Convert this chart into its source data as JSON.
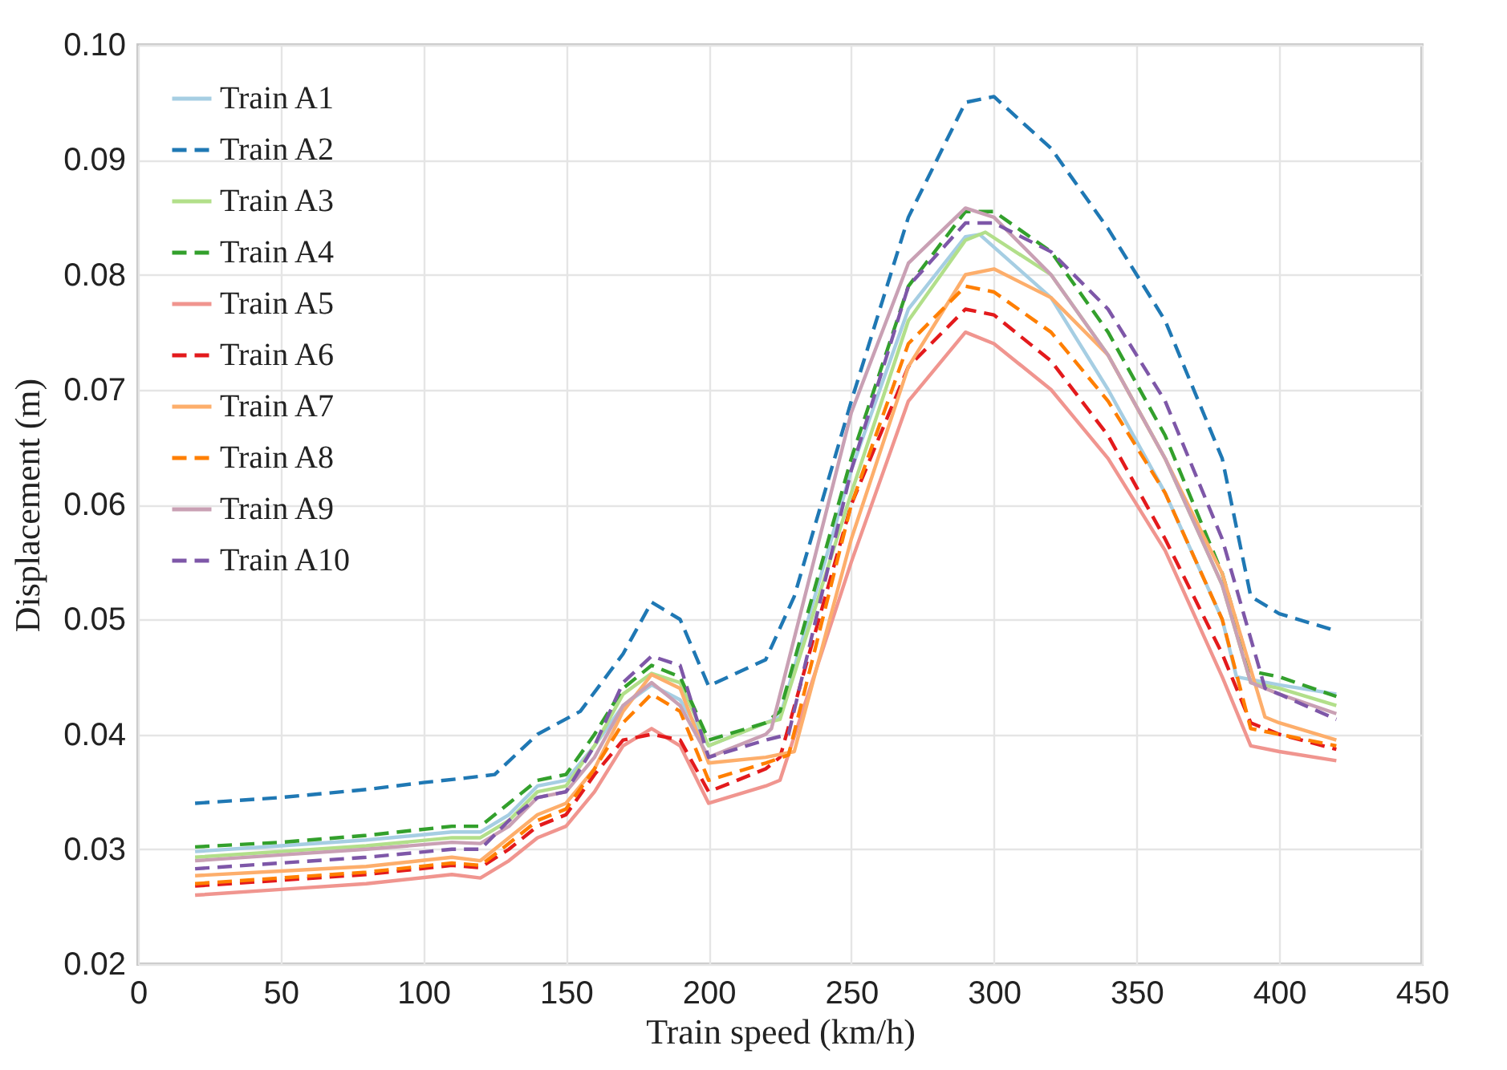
{
  "chart_data": {
    "type": "line",
    "xlabel": "Train speed (km/h)",
    "ylabel": "Displacement (m)",
    "xlim": [
      0,
      450
    ],
    "xticks": [
      0,
      50,
      100,
      150,
      200,
      250,
      300,
      350,
      400,
      450
    ],
    "ylim": [
      0.02,
      0.1
    ],
    "yticks": [
      0.02,
      0.03,
      0.04,
      0.05,
      0.06,
      0.07,
      0.08,
      0.09,
      {
        "value": 0.1,
        "label": "0.10"
      }
    ],
    "grid": true,
    "legend": "top left",
    "marker": "none",
    "series": [
      {
        "name": "Train A1",
        "color": "#a6cee3",
        "line_style": "solid",
        "x": [
          20,
          50,
          80,
          110,
          120,
          130,
          140,
          150,
          160,
          170,
          180,
          190,
          200,
          220,
          225,
          250,
          270,
          290,
          295,
          320,
          340,
          360,
          380,
          385,
          400,
          420
        ],
        "values": [
          0.0298,
          0.0303,
          0.0308,
          0.0315,
          0.0315,
          0.033,
          0.0355,
          0.036,
          0.039,
          0.0425,
          0.0443,
          0.043,
          0.039,
          0.041,
          0.0415,
          0.063,
          0.077,
          0.0833,
          0.0835,
          0.078,
          0.07,
          0.061,
          0.05,
          0.045,
          0.0443,
          0.0435
        ]
      },
      {
        "name": "Train A2",
        "color": "#1f78b4",
        "line_style": "dashed",
        "x": [
          20,
          50,
          80,
          100,
          115,
          125,
          140,
          155,
          170,
          180,
          190,
          200,
          220,
          230,
          250,
          270,
          290,
          300,
          320,
          340,
          360,
          380,
          390,
          400,
          420
        ],
        "values": [
          0.034,
          0.0345,
          0.0352,
          0.0358,
          0.0362,
          0.0365,
          0.04,
          0.042,
          0.047,
          0.0515,
          0.05,
          0.0442,
          0.0465,
          0.052,
          0.069,
          0.085,
          0.095,
          0.0955,
          0.091,
          0.084,
          0.076,
          0.064,
          0.052,
          0.0505,
          0.049
        ]
      },
      {
        "name": "Train A3",
        "color": "#b2df8a",
        "line_style": "solid",
        "x": [
          20,
          50,
          80,
          110,
          120,
          130,
          140,
          150,
          160,
          170,
          180,
          190,
          200,
          220,
          225,
          250,
          270,
          290,
          297,
          320,
          340,
          360,
          380,
          390,
          400,
          420
        ],
        "values": [
          0.0293,
          0.0298,
          0.0303,
          0.031,
          0.031,
          0.0325,
          0.035,
          0.0355,
          0.039,
          0.0435,
          0.0453,
          0.0445,
          0.039,
          0.041,
          0.0413,
          0.061,
          0.076,
          0.083,
          0.0837,
          0.08,
          0.073,
          0.064,
          0.053,
          0.0445,
          0.044,
          0.0425
        ]
      },
      {
        "name": "Train A4",
        "color": "#33a02c",
        "line_style": "dashed",
        "x": [
          20,
          50,
          80,
          110,
          120,
          130,
          140,
          150,
          160,
          170,
          180,
          190,
          200,
          220,
          225,
          250,
          270,
          290,
          300,
          320,
          340,
          360,
          380,
          390,
          400,
          420
        ],
        "values": [
          0.0302,
          0.0306,
          0.0312,
          0.032,
          0.032,
          0.034,
          0.036,
          0.0365,
          0.04,
          0.044,
          0.046,
          0.045,
          0.0395,
          0.041,
          0.042,
          0.064,
          0.079,
          0.0855,
          0.0855,
          0.082,
          0.075,
          0.066,
          0.054,
          0.0455,
          0.045,
          0.0433
        ]
      },
      {
        "name": "Train A5",
        "color": "#f0958f",
        "line_style": "solid",
        "x": [
          20,
          50,
          80,
          110,
          120,
          130,
          140,
          150,
          160,
          170,
          180,
          190,
          200,
          220,
          225,
          250,
          270,
          290,
          300,
          320,
          340,
          360,
          380,
          390,
          400,
          420
        ],
        "values": [
          0.026,
          0.0265,
          0.027,
          0.0278,
          0.0275,
          0.029,
          0.031,
          0.032,
          0.035,
          0.039,
          0.0405,
          0.039,
          0.034,
          0.0355,
          0.036,
          0.055,
          0.069,
          0.075,
          0.074,
          0.07,
          0.064,
          0.056,
          0.045,
          0.039,
          0.0385,
          0.0377
        ]
      },
      {
        "name": "Train A6",
        "color": "#e31a1c",
        "line_style": "dashed",
        "x": [
          20,
          50,
          80,
          110,
          120,
          130,
          140,
          150,
          160,
          170,
          180,
          190,
          200,
          220,
          225,
          250,
          270,
          290,
          300,
          320,
          340,
          360,
          380,
          390,
          400,
          420
        ],
        "values": [
          0.0268,
          0.0273,
          0.0278,
          0.0286,
          0.0284,
          0.03,
          0.032,
          0.033,
          0.0365,
          0.0395,
          0.04,
          0.0395,
          0.035,
          0.037,
          0.038,
          0.06,
          0.072,
          0.077,
          0.0765,
          0.0725,
          0.066,
          0.057,
          0.047,
          0.041,
          0.04,
          0.0387
        ]
      },
      {
        "name": "Train A7",
        "color": "#fdae6b",
        "line_style": "solid",
        "x": [
          20,
          50,
          80,
          110,
          120,
          130,
          140,
          150,
          160,
          170,
          180,
          190,
          200,
          220,
          230,
          250,
          270,
          290,
          300,
          320,
          340,
          360,
          380,
          395,
          400,
          420
        ],
        "values": [
          0.0277,
          0.0281,
          0.0285,
          0.0293,
          0.029,
          0.031,
          0.033,
          0.034,
          0.037,
          0.042,
          0.0452,
          0.044,
          0.0375,
          0.038,
          0.0385,
          0.057,
          0.072,
          0.08,
          0.0805,
          0.078,
          0.073,
          0.064,
          0.054,
          0.0415,
          0.041,
          0.0395
        ]
      },
      {
        "name": "Train A8",
        "color": "#ff7f00",
        "line_style": "dashed",
        "x": [
          20,
          50,
          80,
          110,
          120,
          130,
          140,
          150,
          160,
          170,
          180,
          190,
          200,
          220,
          228,
          250,
          270,
          290,
          300,
          320,
          340,
          360,
          380,
          390,
          400,
          420
        ],
        "values": [
          0.027,
          0.0275,
          0.028,
          0.0288,
          0.0286,
          0.0305,
          0.0325,
          0.0335,
          0.037,
          0.041,
          0.0435,
          0.042,
          0.036,
          0.0375,
          0.0382,
          0.06,
          0.074,
          0.079,
          0.0785,
          0.075,
          0.069,
          0.061,
          0.05,
          0.0405,
          0.04,
          0.039
        ]
      },
      {
        "name": "Train A9",
        "color": "#c9a0b4",
        "line_style": "solid",
        "x": [
          20,
          50,
          80,
          110,
          120,
          130,
          140,
          150,
          160,
          170,
          180,
          190,
          200,
          220,
          222,
          250,
          270,
          290,
          300,
          320,
          340,
          360,
          380,
          390,
          400,
          420
        ],
        "values": [
          0.029,
          0.0295,
          0.03,
          0.0306,
          0.0305,
          0.032,
          0.0345,
          0.035,
          0.038,
          0.0425,
          0.0445,
          0.0425,
          0.038,
          0.04,
          0.0405,
          0.068,
          0.081,
          0.0858,
          0.085,
          0.08,
          0.073,
          0.064,
          0.053,
          0.0445,
          0.0435,
          0.0418
        ]
      },
      {
        "name": "Train A10",
        "color": "#7e57a8",
        "line_style": "dashed",
        "x": [
          20,
          50,
          80,
          110,
          120,
          130,
          140,
          150,
          160,
          170,
          180,
          190,
          200,
          220,
          228,
          250,
          270,
          290,
          300,
          320,
          340,
          360,
          380,
          395,
          400,
          420
        ],
        "values": [
          0.0283,
          0.0288,
          0.0293,
          0.03,
          0.03,
          0.0325,
          0.0345,
          0.035,
          0.039,
          0.0445,
          0.0468,
          0.046,
          0.038,
          0.0395,
          0.04,
          0.063,
          0.079,
          0.0845,
          0.0845,
          0.082,
          0.077,
          0.069,
          0.057,
          0.044,
          0.0435,
          0.0413
        ]
      }
    ]
  }
}
